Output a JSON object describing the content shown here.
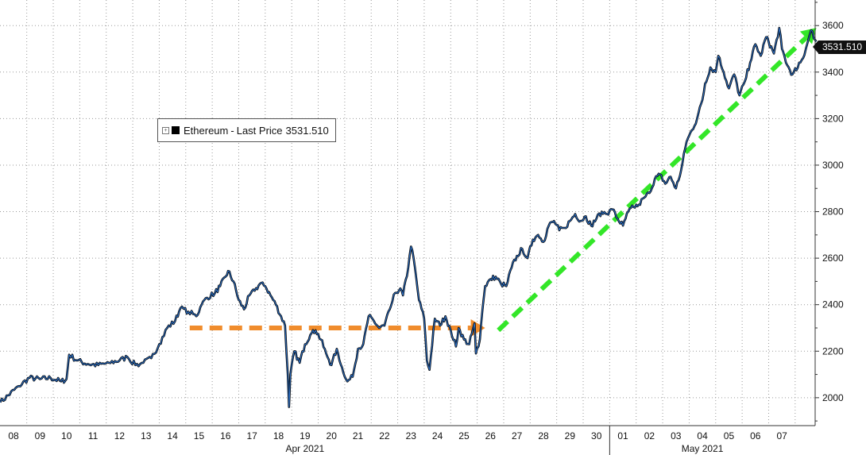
{
  "chart_data": {
    "type": "line",
    "y_ticks": [
      2000,
      2200,
      2400,
      2600,
      2800,
      3000,
      3200,
      3400,
      3600
    ],
    "ylim": [
      1880,
      3710
    ],
    "x_days": [
      "08",
      "09",
      "10",
      "11",
      "12",
      "13",
      "14",
      "15",
      "16",
      "17",
      "18",
      "19",
      "20",
      "21",
      "22",
      "23",
      "24",
      "25",
      "26",
      "27",
      "28",
      "29",
      "30",
      "01",
      "02",
      "03",
      "04",
      "05",
      "06",
      "07"
    ],
    "x_months": [
      "Apr 2021",
      "May 2021"
    ],
    "grid": true,
    "legend": {
      "position": "upper-left",
      "series_name": "Ethereum",
      "sep": "-",
      "field": "Last Price",
      "value": "3531.510"
    },
    "last_price_label": "3531.510",
    "series": [
      {
        "name": "Ethereum",
        "day_offset_from": "Apr 08 2021",
        "points": [
          [
            -0.5,
            1980
          ],
          [
            -0.2,
            2010
          ],
          [
            0.2,
            2050
          ],
          [
            0.6,
            2085
          ],
          [
            1.0,
            2080
          ],
          [
            1.4,
            2085
          ],
          [
            1.8,
            2070
          ],
          [
            2.0,
            2080
          ],
          [
            2.1,
            2185
          ],
          [
            2.4,
            2160
          ],
          [
            2.8,
            2145
          ],
          [
            3.2,
            2140
          ],
          [
            3.6,
            2150
          ],
          [
            4.0,
            2160
          ],
          [
            4.3,
            2175
          ],
          [
            4.6,
            2140
          ],
          [
            4.9,
            2150
          ],
          [
            5.2,
            2170
          ],
          [
            5.5,
            2230
          ],
          [
            5.8,
            2300
          ],
          [
            6.1,
            2330
          ],
          [
            6.3,
            2385
          ],
          [
            6.6,
            2370
          ],
          [
            6.9,
            2350
          ],
          [
            7.1,
            2400
          ],
          [
            7.3,
            2430
          ],
          [
            7.6,
            2450
          ],
          [
            7.8,
            2480
          ],
          [
            8.0,
            2520
          ],
          [
            8.1,
            2545
          ],
          [
            8.3,
            2500
          ],
          [
            8.5,
            2420
          ],
          [
            8.7,
            2380
          ],
          [
            8.9,
            2440
          ],
          [
            9.1,
            2460
          ],
          [
            9.3,
            2490
          ],
          [
            9.5,
            2480
          ],
          [
            9.7,
            2440
          ],
          [
            9.9,
            2400
          ],
          [
            10.1,
            2350
          ],
          [
            10.25,
            2310
          ],
          [
            10.35,
            2100
          ],
          [
            10.4,
            1960
          ],
          [
            10.45,
            2100
          ],
          [
            10.6,
            2200
          ],
          [
            10.8,
            2150
          ],
          [
            11.0,
            2230
          ],
          [
            11.2,
            2270
          ],
          [
            11.4,
            2290
          ],
          [
            11.6,
            2250
          ],
          [
            11.8,
            2190
          ],
          [
            12.0,
            2140
          ],
          [
            12.2,
            2210
          ],
          [
            12.4,
            2130
          ],
          [
            12.6,
            2070
          ],
          [
            12.8,
            2090
          ],
          [
            13.0,
            2210
          ],
          [
            13.2,
            2230
          ],
          [
            13.4,
            2350
          ],
          [
            13.6,
            2330
          ],
          [
            13.8,
            2300
          ],
          [
            14.0,
            2310
          ],
          [
            14.2,
            2380
          ],
          [
            14.4,
            2450
          ],
          [
            14.6,
            2470
          ],
          [
            14.7,
            2440
          ],
          [
            14.9,
            2560
          ],
          [
            15.0,
            2650
          ],
          [
            15.1,
            2600
          ],
          [
            15.3,
            2420
          ],
          [
            15.5,
            2340
          ],
          [
            15.6,
            2160
          ],
          [
            15.7,
            2120
          ],
          [
            15.9,
            2340
          ],
          [
            16.1,
            2310
          ],
          [
            16.3,
            2350
          ],
          [
            16.5,
            2290
          ],
          [
            16.7,
            2220
          ],
          [
            16.8,
            2300
          ],
          [
            17.0,
            2250
          ],
          [
            17.2,
            2230
          ],
          [
            17.4,
            2320
          ],
          [
            17.45,
            2190
          ],
          [
            17.6,
            2250
          ],
          [
            17.7,
            2380
          ],
          [
            17.8,
            2480
          ],
          [
            18.0,
            2510
          ],
          [
            18.2,
            2520
          ],
          [
            18.4,
            2490
          ],
          [
            18.6,
            2480
          ],
          [
            18.8,
            2560
          ],
          [
            19.0,
            2610
          ],
          [
            19.2,
            2640
          ],
          [
            19.4,
            2600
          ],
          [
            19.6,
            2680
          ],
          [
            19.8,
            2700
          ],
          [
            20.0,
            2670
          ],
          [
            20.2,
            2740
          ],
          [
            20.4,
            2760
          ],
          [
            20.6,
            2720
          ],
          [
            20.8,
            2730
          ],
          [
            21.0,
            2760
          ],
          [
            21.2,
            2790
          ],
          [
            21.4,
            2760
          ],
          [
            21.6,
            2780
          ],
          [
            21.8,
            2740
          ],
          [
            22.0,
            2770
          ],
          [
            22.2,
            2800
          ],
          [
            22.4,
            2790
          ],
          [
            22.6,
            2810
          ],
          [
            22.8,
            2770
          ],
          [
            23.0,
            2740
          ],
          [
            23.2,
            2800
          ],
          [
            23.4,
            2820
          ],
          [
            23.6,
            2830
          ],
          [
            23.8,
            2860
          ],
          [
            24.0,
            2880
          ],
          [
            24.2,
            2940
          ],
          [
            24.4,
            2960
          ],
          [
            24.6,
            2920
          ],
          [
            24.8,
            2950
          ],
          [
            25.0,
            2900
          ],
          [
            25.2,
            2980
          ],
          [
            25.4,
            3100
          ],
          [
            25.6,
            3150
          ],
          [
            25.8,
            3200
          ],
          [
            26.0,
            3280
          ],
          [
            26.1,
            3350
          ],
          [
            26.3,
            3420
          ],
          [
            26.5,
            3400
          ],
          [
            26.6,
            3470
          ],
          [
            26.8,
            3400
          ],
          [
            27.0,
            3330
          ],
          [
            27.2,
            3390
          ],
          [
            27.4,
            3300
          ],
          [
            27.6,
            3360
          ],
          [
            27.8,
            3440
          ],
          [
            28.0,
            3520
          ],
          [
            28.2,
            3470
          ],
          [
            28.4,
            3550
          ],
          [
            28.5,
            3530
          ],
          [
            28.7,
            3480
          ],
          [
            28.9,
            3590
          ],
          [
            29.0,
            3500
          ],
          [
            29.2,
            3430
          ],
          [
            29.4,
            3390
          ],
          [
            29.6,
            3420
          ],
          [
            29.8,
            3460
          ],
          [
            30.0,
            3540
          ],
          [
            30.1,
            3580
          ],
          [
            30.3,
            3531.51
          ]
        ]
      }
    ],
    "annotations": [
      {
        "type": "dashed-arrow",
        "color": "#f08c2c",
        "from": [
          6.65,
          2300
        ],
        "to": [
          17.8,
          2300
        ]
      },
      {
        "type": "dashed-arrow",
        "color": "#33e628",
        "from": [
          18.3,
          2290
        ],
        "to": [
          30.3,
          3590
        ]
      }
    ]
  }
}
